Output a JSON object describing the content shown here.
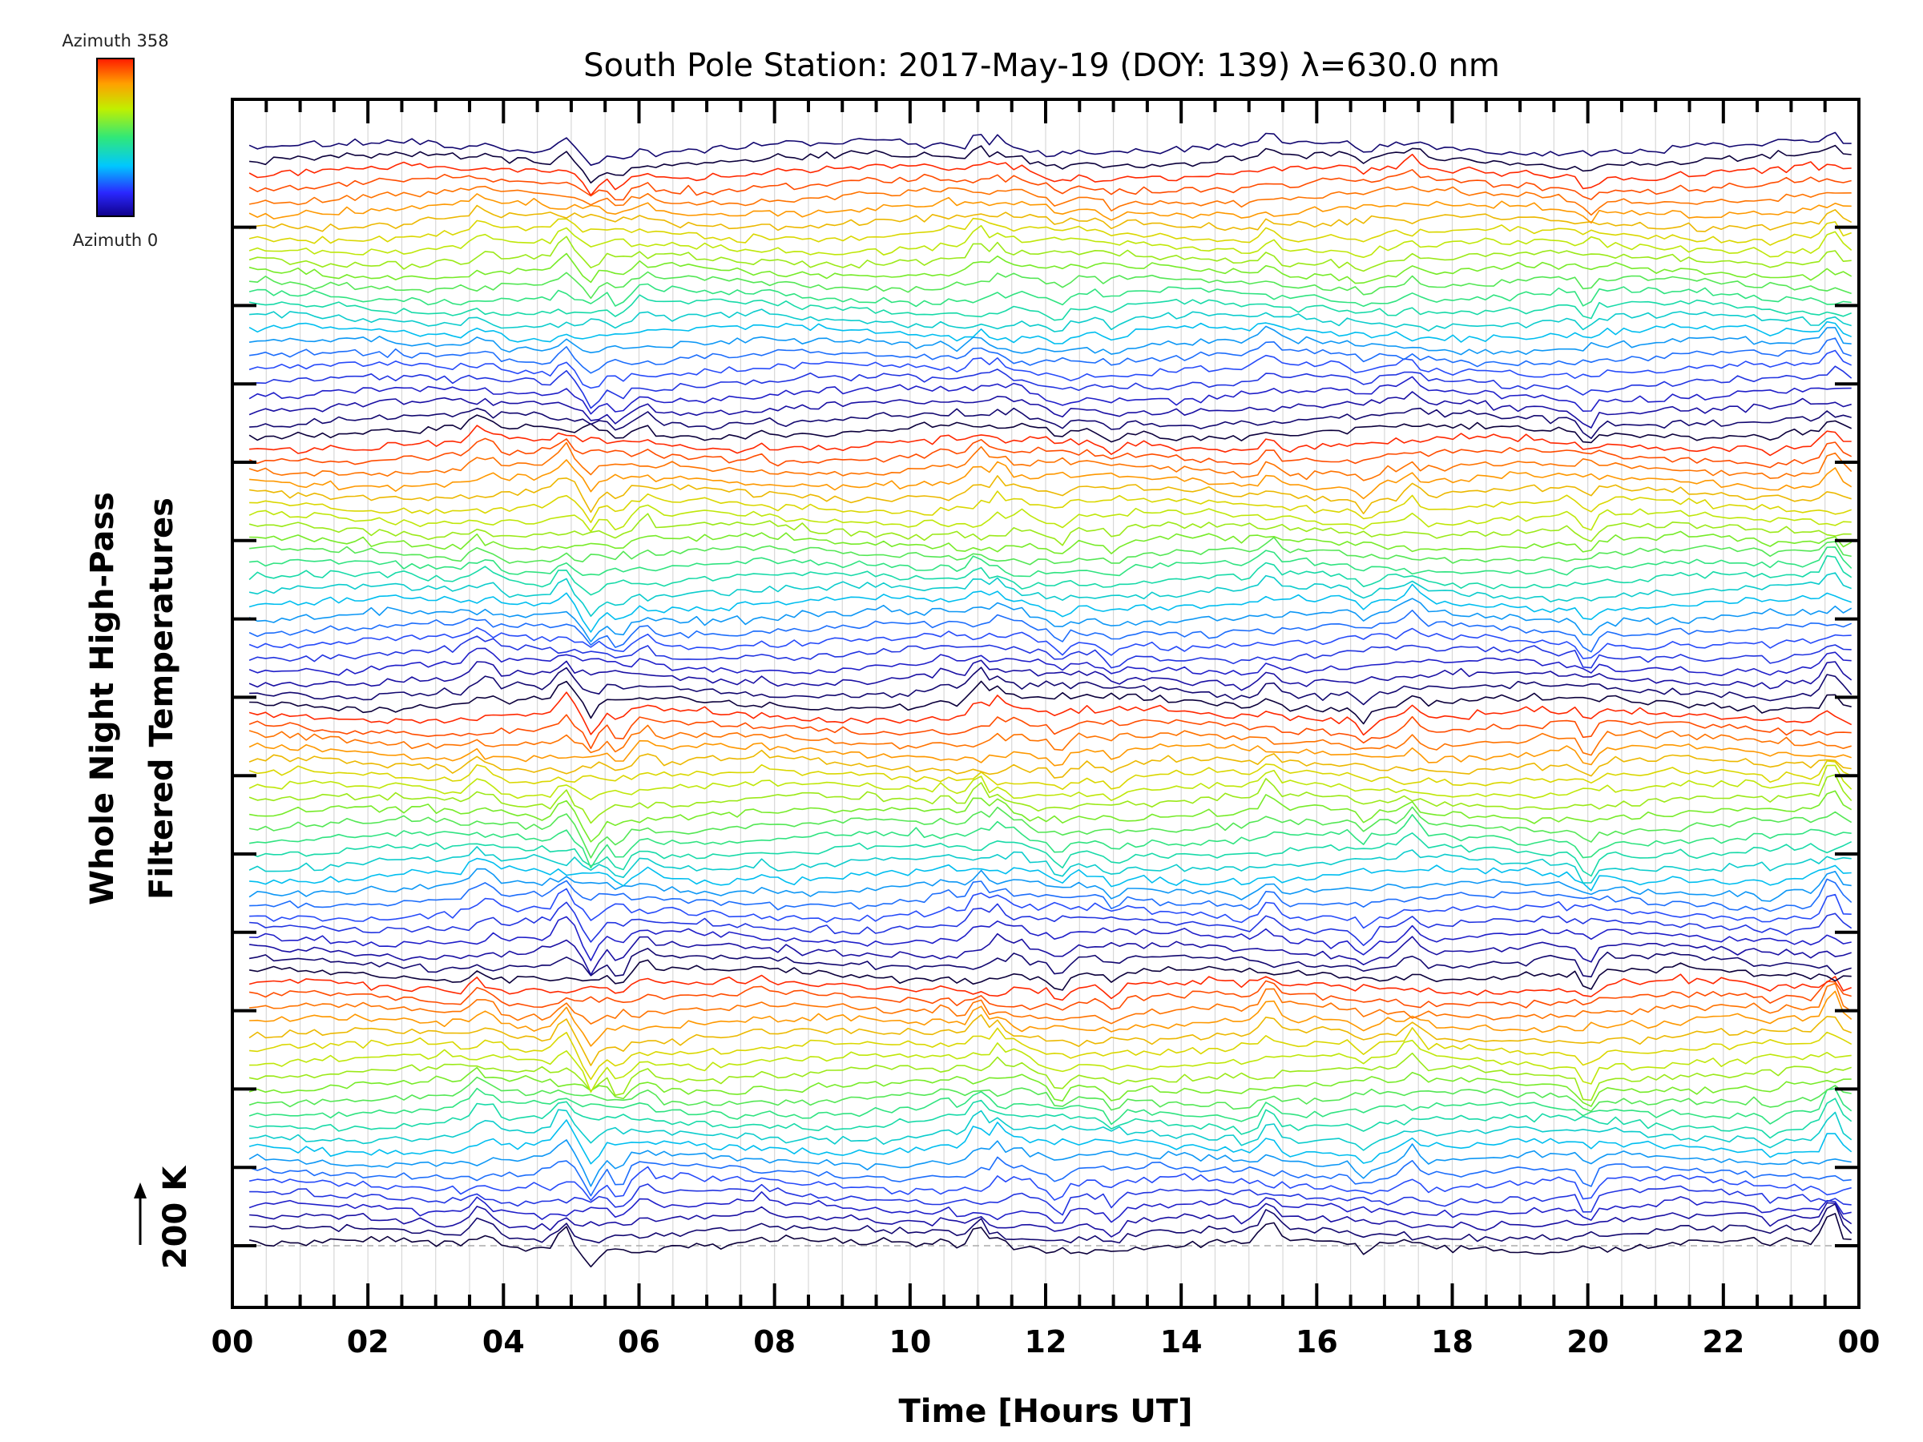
{
  "chart_data": {
    "type": "line",
    "title": "South Pole Station: 2017-May-19 (DOY: 139) λ=630.0 nm",
    "xlabel": "Time [Hours UT]",
    "ylabel_lines": [
      "Whole Night High-Pass",
      "Filtered Temperatures"
    ],
    "scale_label": "200 K",
    "x_ticks": [
      "00",
      "02",
      "04",
      "06",
      "08",
      "10",
      "12",
      "14",
      "16",
      "18",
      "20",
      "22",
      "00"
    ],
    "xlim": [
      0,
      24
    ],
    "colorbar": {
      "top_label": "Azimuth 358",
      "bottom_label": "Azimuth 0"
    },
    "grid": true,
    "stacked_offset_K": 29,
    "series_count": 90,
    "notes_series": "Each trace is one azimuth sample (0-358 deg), stacked vertically with a constant offset; colour encodes azimuth on a rainbow scale.",
    "event_hours": [
      3.6,
      3.8,
      4.9,
      5.3,
      5.7,
      6.1,
      7.8,
      10.5,
      11.0,
      11.3,
      11.6,
      12.2,
      13.0,
      14.9,
      15.3,
      16.7,
      17.4,
      20.0,
      21.3,
      22.7,
      23.6
    ]
  }
}
